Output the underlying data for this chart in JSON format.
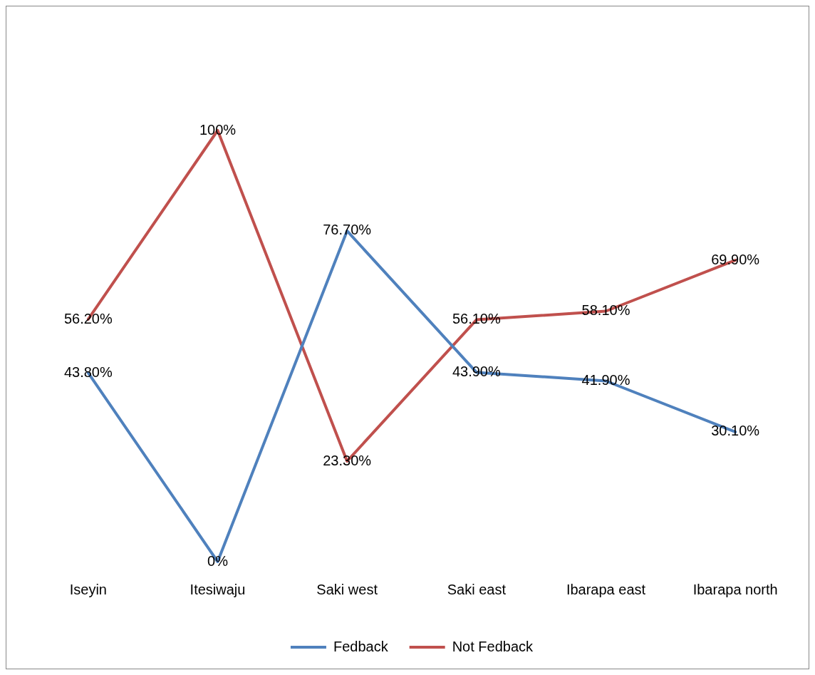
{
  "chart_data": {
    "type": "line",
    "categories": [
      "Iseyin",
      "Itesiwaju",
      "Saki west",
      "Saki east",
      "Ibarapa east",
      "Ibarapa north"
    ],
    "series": [
      {
        "name": "Fedback",
        "color": "#4f81bd",
        "values": [
          43.8,
          0,
          76.7,
          43.9,
          41.9,
          30.1
        ],
        "value_labels": [
          "43.80%",
          "0%",
          "76.70%",
          "43.90%",
          "41.90%",
          "30.10%"
        ]
      },
      {
        "name": "Not Fedback",
        "color": "#c0504d",
        "values": [
          56.2,
          100,
          23.3,
          56.1,
          58.1,
          69.9
        ],
        "value_labels": [
          "56.20%",
          "100%",
          "23.30%",
          "56.10%",
          "58.10%",
          "69.90%"
        ]
      }
    ],
    "legend": "bottom",
    "grid": false,
    "marker": "none",
    "line_style": "solid"
  }
}
